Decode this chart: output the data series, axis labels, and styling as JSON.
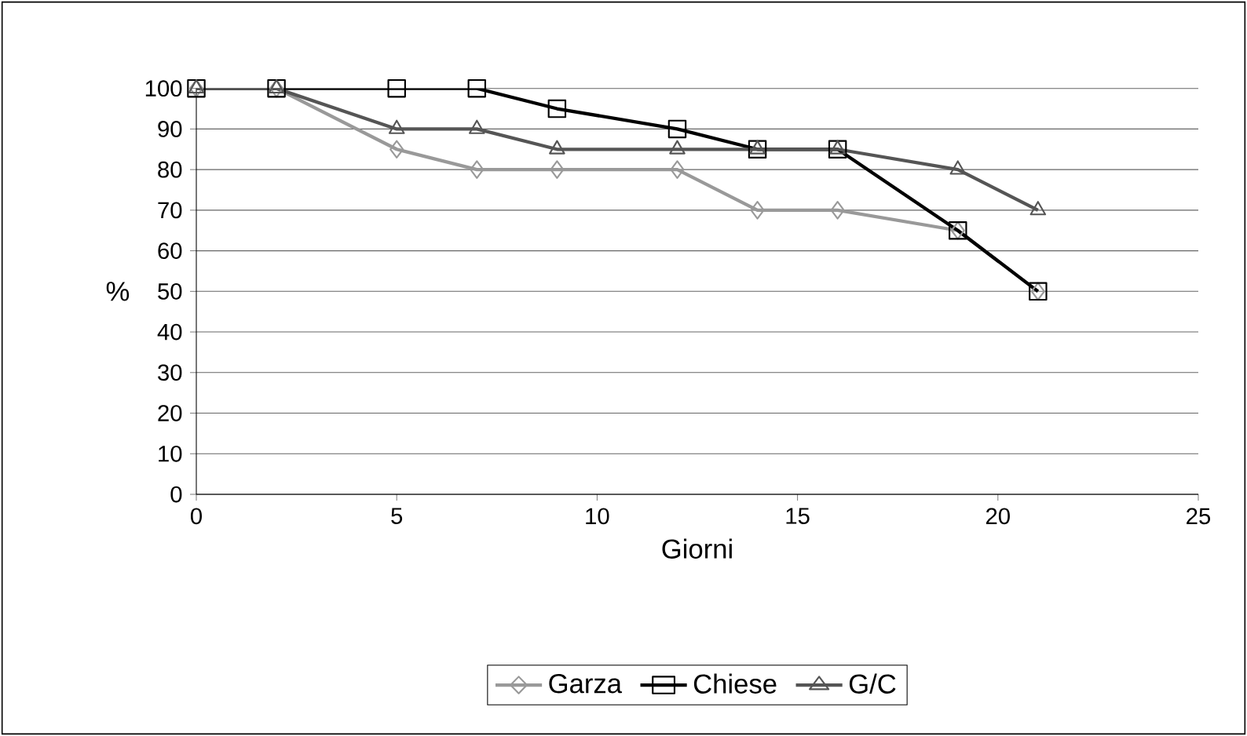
{
  "chart_data": {
    "type": "line",
    "xlabel": "Giorni",
    "ylabel": "%",
    "x": [
      0,
      2,
      5,
      7,
      9,
      12,
      14,
      16,
      19,
      21
    ],
    "series": [
      {
        "name": "Garza",
        "color": "#999999",
        "marker": "diamond",
        "values": [
          100,
          100,
          85,
          80,
          80,
          80,
          70,
          70,
          65,
          50
        ]
      },
      {
        "name": "Chiese",
        "color": "#000000",
        "marker": "square",
        "values": [
          100,
          100,
          100,
          100,
          95,
          90,
          85,
          85,
          65,
          50
        ]
      },
      {
        "name": "G/C",
        "color": "#555555",
        "marker": "triangle",
        "values": [
          100,
          100,
          90,
          90,
          85,
          85,
          85,
          85,
          80,
          70
        ]
      }
    ],
    "xlim": [
      0,
      25
    ],
    "ylim": [
      0,
      100
    ],
    "xticks": [
      0,
      5,
      10,
      15,
      20,
      25
    ],
    "yticks": [
      0,
      10,
      20,
      30,
      40,
      50,
      60,
      70,
      80,
      90,
      100
    ],
    "grid": "y",
    "legend": "bottom",
    "line_style": "solid"
  }
}
